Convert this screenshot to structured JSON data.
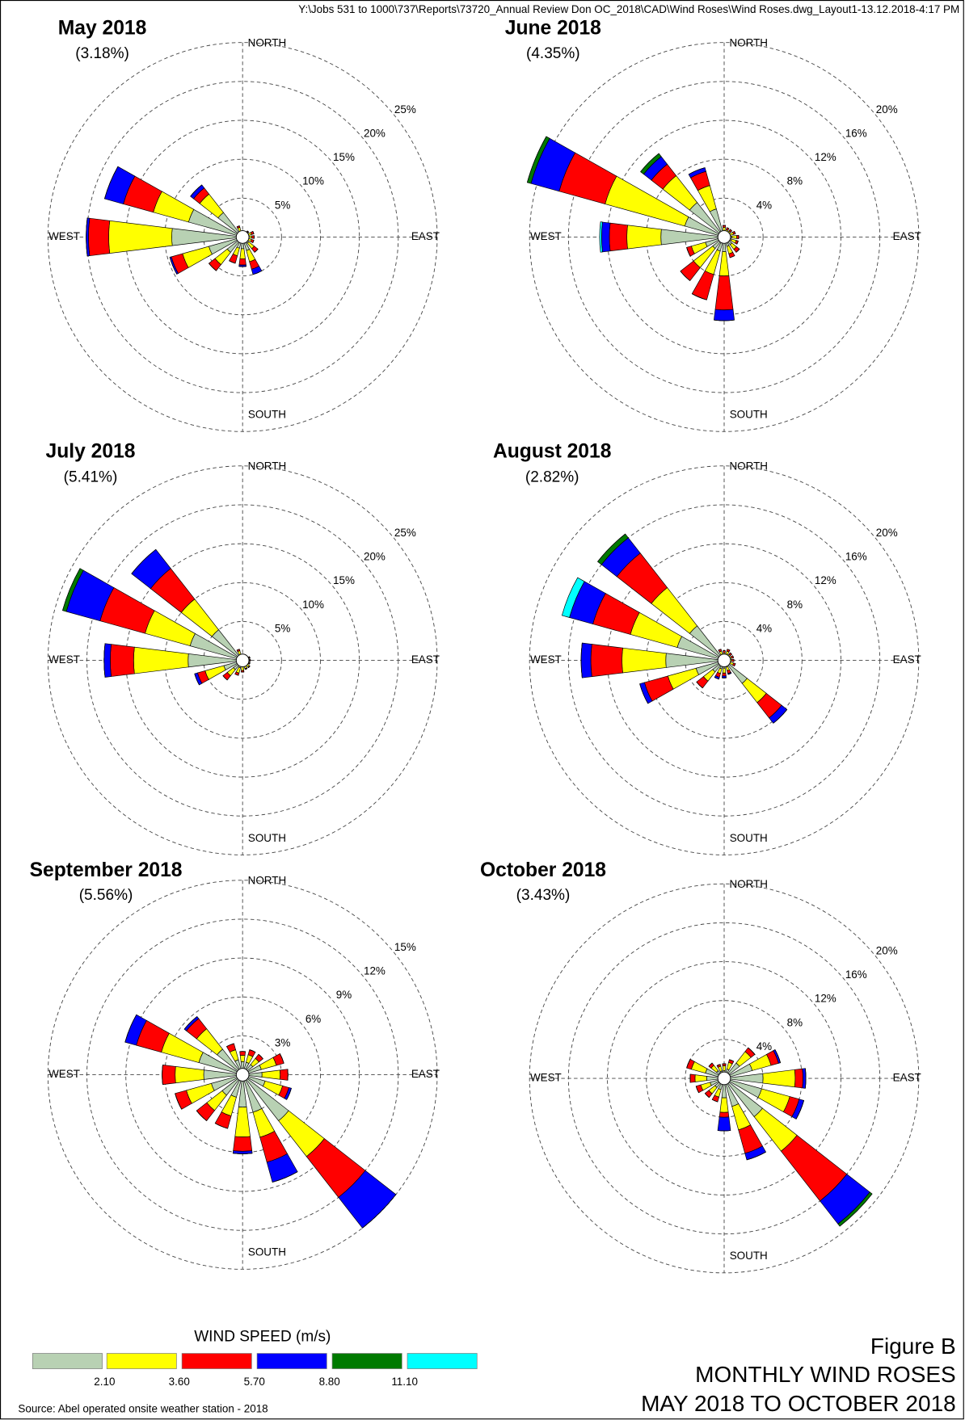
{
  "header": "Y:\\Jobs 531 to 1000\\737\\Reports\\73720_Annual Review Don OC_2018\\CAD\\Wind Roses\\Wind Roses.dwg_Layout1-13.12.2018-4:17 PM",
  "chart_data": [
    {
      "type": "wind_rose",
      "title": "May 2018",
      "calm": {
        "value": 3.18,
        "label": "(3.18%)"
      },
      "compass": [
        "NORTH",
        "EAST",
        "SOUTH",
        "WEST"
      ],
      "x": [
        0,
        22.5,
        45,
        67.5,
        90,
        112.5,
        135,
        157.5,
        180,
        202.5,
        225,
        247.5,
        270,
        292.5,
        315,
        337.5
      ],
      "rlim": [
        0,
        25
      ],
      "rticks": [
        {
          "value": 5,
          "label": "5%"
        },
        {
          "value": 10,
          "label": "10%"
        },
        {
          "value": 15,
          "label": "15%"
        },
        {
          "value": 20,
          "label": "20%"
        },
        {
          "value": 25,
          "label": "25%"
        }
      ],
      "series": [
        {
          "values": [
            0.5,
            0.5,
            0.5,
            0.6,
            0.6,
            0.6,
            1.0,
            1.8,
            1.5,
            1.5,
            2.5,
            4.5,
            9.1,
            7.2,
            4.0,
            0.8
          ]
        },
        {
          "values": [
            0.3,
            0.3,
            0.4,
            0.6,
            0.6,
            0.6,
            0.9,
            1.5,
            1.3,
            1.0,
            2.0,
            3.5,
            8.1,
            4.7,
            3.0,
            0.5
          ]
        },
        {
          "values": [
            0,
            0,
            0.1,
            0.3,
            0.3,
            0.3,
            0.6,
            1.0,
            0.8,
            1.0,
            1.0,
            1.5,
            2.6,
            4.0,
            1.0,
            0.2
          ]
        },
        {
          "values": [
            0,
            0,
            0,
            0,
            0,
            0,
            0,
            0.7,
            0.2,
            0,
            0,
            0.2,
            0.3,
            2.5,
            0.5,
            0
          ]
        },
        {
          "values": [
            0,
            0,
            0,
            0,
            0,
            0,
            0,
            0,
            0,
            0,
            0,
            0,
            0,
            0,
            0,
            0
          ]
        },
        {
          "values": [
            0,
            0,
            0,
            0,
            0,
            0,
            0,
            0,
            0,
            0,
            0,
            0,
            0,
            0,
            0,
            0
          ]
        }
      ]
    },
    {
      "type": "wind_rose",
      "title": "June 2018",
      "calm": {
        "value": 4.35,
        "label": "(4.35%)"
      },
      "compass": [
        "NORTH",
        "EAST",
        "SOUTH",
        "WEST"
      ],
      "x": [
        0,
        22.5,
        45,
        67.5,
        90,
        112.5,
        135,
        157.5,
        180,
        202.5,
        225,
        247.5,
        270,
        292.5,
        315,
        337.5
      ],
      "rlim": [
        0,
        20
      ],
      "rticks": [
        {
          "value": 4,
          "label": "4%"
        },
        {
          "value": 8,
          "label": "8%"
        },
        {
          "value": 12,
          "label": "12%"
        },
        {
          "value": 16,
          "label": "16%"
        },
        {
          "value": 20,
          "label": "20%"
        }
      ],
      "series": [
        {
          "values": [
            0.6,
            0.5,
            0.5,
            0.6,
            0.8,
            0.8,
            1.0,
            1.0,
            1.5,
            1.5,
            1.5,
            2.0,
            6.5,
            4.2,
            4.5,
            3.0
          ]
        },
        {
          "values": [
            0.4,
            0.3,
            0.3,
            0.4,
            0.5,
            0.5,
            0.6,
            0.8,
            2.5,
            2.5,
            2.5,
            1.5,
            3.5,
            8.5,
            3.5,
            2.5
          ]
        },
        {
          "values": [
            0.2,
            0.2,
            0.2,
            0.2,
            0.2,
            0.2,
            0.4,
            0.4,
            3.5,
            2.7,
            1.7,
            0.5,
            1.8,
            4.9,
            1.5,
            1.5
          ]
        },
        {
          "values": [
            0,
            0,
            0,
            0,
            0,
            0,
            0,
            0,
            1.1,
            0,
            0,
            0,
            0.8,
            3.0,
            1.0,
            0.4
          ]
        },
        {
          "values": [
            0,
            0,
            0,
            0,
            0,
            0,
            0,
            0,
            0,
            0,
            0,
            0,
            0,
            0.4,
            0.4,
            0
          ]
        },
        {
          "values": [
            0,
            0,
            0,
            0,
            0,
            0,
            0,
            0,
            0,
            0,
            0,
            0,
            0.2,
            0,
            0,
            0
          ]
        }
      ]
    },
    {
      "type": "wind_rose",
      "title": "July 2018",
      "calm": {
        "value": 5.41,
        "label": "(5.41%)"
      },
      "compass": [
        "NORTH",
        "EAST",
        "SOUTH",
        "WEST"
      ],
      "x": [
        0,
        22.5,
        45,
        67.5,
        90,
        112.5,
        135,
        157.5,
        180,
        202.5,
        225,
        247.5,
        270,
        292.5,
        315,
        337.5
      ],
      "rlim": [
        0,
        25
      ],
      "rticks": [
        {
          "value": 5,
          "label": "5%"
        },
        {
          "value": 10,
          "label": "10%"
        },
        {
          "value": 15,
          "label": "15%"
        },
        {
          "value": 20,
          "label": "20%"
        },
        {
          "value": 25,
          "label": "25%"
        }
      ],
      "series": [
        {
          "values": [
            0.5,
            0.5,
            0.5,
            0.6,
            0.6,
            0.6,
            0.7,
            0.7,
            0.8,
            1.0,
            1.5,
            2.5,
            7.0,
            7.0,
            5.0,
            0.8
          ]
        },
        {
          "values": [
            0.3,
            0.3,
            0.3,
            0.3,
            0.3,
            0.3,
            0.4,
            0.4,
            0.5,
            0.7,
            1.0,
            2.5,
            7.0,
            6.0,
            5.0,
            0.5
          ]
        },
        {
          "values": [
            0,
            0,
            0,
            0.1,
            0.1,
            0.1,
            0.1,
            0.1,
            0.2,
            0.3,
            0.7,
            1.0,
            3.0,
            6.0,
            5.0,
            0.2
          ]
        },
        {
          "values": [
            0,
            0,
            0,
            0,
            0,
            0,
            0,
            0,
            0,
            0,
            0,
            0.4,
            0.8,
            4.5,
            3.1,
            0
          ]
        },
        {
          "values": [
            0,
            0,
            0,
            0,
            0,
            0,
            0,
            0,
            0,
            0,
            0,
            0,
            0,
            0.5,
            0,
            0
          ]
        },
        {
          "values": [
            0,
            0,
            0,
            0,
            0,
            0,
            0,
            0,
            0,
            0,
            0,
            0,
            0,
            0,
            0,
            0
          ]
        }
      ]
    },
    {
      "type": "wind_rose",
      "title": "August 2018",
      "calm": {
        "value": 2.82,
        "label": "(2.82%)"
      },
      "compass": [
        "NORTH",
        "EAST",
        "SOUTH",
        "WEST"
      ],
      "x": [
        0,
        22.5,
        45,
        67.5,
        90,
        112.5,
        135,
        157.5,
        180,
        202.5,
        225,
        247.5,
        270,
        292.5,
        315,
        337.5
      ],
      "rlim": [
        0,
        20
      ],
      "rticks": [
        {
          "value": 4,
          "label": "4%"
        },
        {
          "value": 8,
          "label": "8%"
        },
        {
          "value": 12,
          "label": "12%"
        },
        {
          "value": 16,
          "label": "16%"
        },
        {
          "value": 20,
          "label": "20%"
        }
      ],
      "series": [
        {
          "values": [
            0.5,
            0.6,
            0.5,
            0.5,
            0.5,
            0.6,
            3.0,
            0.7,
            0.8,
            0.9,
            1.5,
            3.0,
            6.0,
            5.0,
            4.5,
            0.6
          ]
        },
        {
          "values": [
            0.3,
            0.4,
            0.3,
            0.3,
            0.3,
            0.4,
            2.5,
            0.4,
            0.5,
            0.5,
            1.2,
            3.0,
            4.5,
            5.0,
            5.0,
            0.4
          ]
        },
        {
          "values": [
            0.2,
            0.2,
            0.2,
            0.2,
            0.2,
            0.2,
            2.0,
            0.3,
            0.3,
            0.4,
            0.9,
            2.5,
            3.2,
            4.0,
            4.5,
            0.2
          ]
        },
        {
          "values": [
            0,
            0,
            0,
            0,
            0,
            0,
            0.7,
            0.1,
            0.2,
            0.2,
            0,
            0.5,
            1.0,
            2.5,
            2.0,
            0
          ]
        },
        {
          "values": [
            0,
            0,
            0,
            0,
            0,
            0,
            0,
            0,
            0,
            0,
            0,
            0,
            0,
            0,
            0.5,
            0
          ]
        },
        {
          "values": [
            0,
            0,
            0,
            0,
            0,
            0,
            0,
            0,
            0,
            0,
            0,
            0,
            0,
            0.8,
            0,
            0
          ]
        }
      ]
    },
    {
      "type": "wind_rose",
      "title": "September 2018",
      "calm": {
        "value": 5.56,
        "label": "(5.56%)"
      },
      "compass": [
        "NORTH",
        "EAST",
        "SOUTH",
        "WEST"
      ],
      "x": [
        0,
        22.5,
        45,
        67.5,
        90,
        112.5,
        135,
        157.5,
        180,
        202.5,
        225,
        247.5,
        270,
        292.5,
        315,
        337.5
      ],
      "rlim": [
        0,
        15
      ],
      "rticks": [
        {
          "value": 3,
          "label": "3%"
        },
        {
          "value": 6,
          "label": "6%"
        },
        {
          "value": 9,
          "label": "9%"
        },
        {
          "value": 12,
          "label": "12%"
        },
        {
          "value": 15,
          "label": "15%"
        }
      ],
      "series": [
        {
          "values": [
            1.0,
            1.0,
            1.0,
            1.5,
            1.5,
            1.8,
            4.5,
            3.0,
            2.5,
            1.8,
            2.0,
            2.5,
            3.0,
            3.5,
            2.5,
            1.2
          ]
        },
        {
          "values": [
            0.5,
            0.6,
            0.6,
            1.2,
            1.4,
            1.4,
            3.5,
            2.0,
            2.3,
            1.5,
            1.5,
            2.0,
            2.2,
            3.0,
            2.0,
            0.8
          ]
        },
        {
          "values": [
            0.3,
            0.4,
            0.4,
            0.6,
            0.6,
            0.5,
            4.0,
            2.0,
            1.1,
            1.0,
            1.0,
            0.9,
            1.0,
            2.0,
            1.0,
            0.5
          ]
        },
        {
          "values": [
            0,
            0,
            0,
            0,
            0,
            0.2,
            3.0,
            1.6,
            0.2,
            0,
            0,
            0,
            0,
            0.9,
            0.2,
            0
          ]
        },
        {
          "values": [
            0,
            0,
            0,
            0,
            0,
            0,
            0,
            0,
            0,
            0,
            0,
            0,
            0,
            0,
            0,
            0
          ]
        },
        {
          "values": [
            0,
            0,
            0,
            0,
            0,
            0,
            0,
            0,
            0,
            0,
            0,
            0,
            0,
            0,
            0,
            0
          ]
        }
      ]
    },
    {
      "type": "wind_rose",
      "title": "October 2018",
      "calm": {
        "value": 3.43,
        "label": "(3.43%)"
      },
      "compass": [
        "NORTH",
        "EAST",
        "SOUTH",
        "WEST"
      ],
      "x": [
        0,
        22.5,
        45,
        67.5,
        90,
        112.5,
        135,
        157.5,
        180,
        202.5,
        225,
        247.5,
        270,
        292.5,
        315,
        337.5
      ],
      "rlim": [
        0,
        20
      ],
      "rticks": [
        {
          "value": 4,
          "label": "4%"
        },
        {
          "value": 8,
          "label": "8%"
        },
        {
          "value": 12,
          "label": "12%"
        },
        {
          "value": 16,
          "label": "16%"
        },
        {
          "value": 20,
          "label": "20%"
        }
      ],
      "series": [
        {
          "values": [
            0.8,
            1.0,
            2.0,
            3.0,
            4.0,
            4.0,
            5.0,
            3.0,
            2.0,
            1.2,
            1.2,
            1.5,
            1.8,
            2.0,
            1.0,
            0.8
          ]
        },
        {
          "values": [
            0.5,
            0.7,
            1.5,
            2.0,
            3.3,
            3.0,
            4.5,
            2.5,
            1.5,
            0.8,
            0.8,
            1.0,
            1.2,
            1.5,
            0.7,
            0.5
          ]
        },
        {
          "values": [
            0.2,
            0.3,
            0.5,
            0.8,
            0.8,
            1.0,
            6.5,
            2.5,
            0.5,
            0.5,
            0.5,
            0.5,
            0.5,
            0.5,
            0.3,
            0.2
          ]
        },
        {
          "values": [
            0,
            0,
            0,
            0.2,
            0.3,
            0.5,
            3.0,
            0.7,
            1.4,
            0,
            0,
            0,
            0,
            0,
            0,
            0
          ]
        },
        {
          "values": [
            0,
            0,
            0,
            0,
            0,
            0,
            0.3,
            0,
            0,
            0,
            0,
            0,
            0,
            0,
            0,
            0
          ]
        },
        {
          "values": [
            0,
            0,
            0,
            0,
            0,
            0,
            0,
            0,
            0,
            0,
            0,
            0,
            0,
            0,
            0,
            0
          ]
        }
      ]
    }
  ],
  "speed_bins": {
    "title": "WIND SPEED (m/s)",
    "colors": [
      "#b8d1b3",
      "#ffff00",
      "#ff0000",
      "#0000ff",
      "#007a00",
      "#00ffff"
    ],
    "ticks": [
      {
        "value": 2.1,
        "label": "2.10"
      },
      {
        "value": 3.6,
        "label": "3.60"
      },
      {
        "value": 5.7,
        "label": "5.70"
      },
      {
        "value": 8.8,
        "label": "8.80"
      },
      {
        "value": 11.1,
        "label": "11.10"
      }
    ]
  },
  "figure": {
    "label": "Figure B",
    "title": "MONTHLY WIND ROSES",
    "period": "MAY 2018 TO OCTOBER 2018"
  },
  "source": "Source: Abel operated onsite weather station - 2018"
}
